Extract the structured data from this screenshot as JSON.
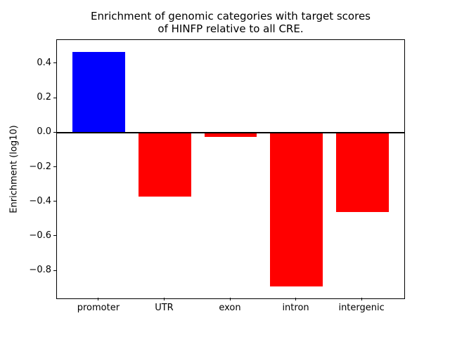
{
  "figure": {
    "background": "#ffffff",
    "text_color": "#000000",
    "axis_color": "#000000"
  },
  "chart_data": {
    "type": "bar",
    "title": "Enrichment of genomic categories with target scores of HINFP relative to all CRE.",
    "title_lines": [
      "Enrichment of genomic categories with target scores",
      "of HINFP relative to all CRE."
    ],
    "xlabel": "",
    "ylabel": "Enrichment (log10)",
    "categories": [
      "promoter",
      "UTR",
      "exon",
      "intron",
      "intergenic"
    ],
    "values": [
      0.47,
      -0.37,
      -0.025,
      -0.89,
      -0.46
    ],
    "bar_colors": [
      "#0000ff",
      "#ff0000",
      "#ff0000",
      "#ff0000",
      "#ff0000"
    ],
    "positive_color": "#0000ff",
    "negative_color": "#ff0000",
    "yticks": [
      0.4,
      0.2,
      0.0,
      -0.2,
      -0.4,
      -0.6,
      -0.8
    ],
    "ylim": [
      -0.958,
      0.538
    ],
    "xlim": [
      -0.64,
      4.64
    ],
    "bar_width": 0.8,
    "zero_line": true,
    "grid": false,
    "legend": null
  }
}
